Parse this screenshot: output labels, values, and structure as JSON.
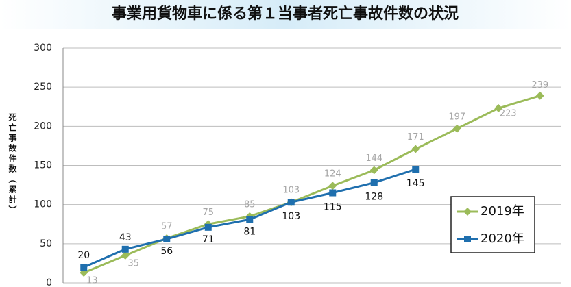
{
  "chart_data": {
    "type": "line",
    "title": "事業用貨物車に係る第１当事者死亡事故件数の状況",
    "y_label": "死亡事故件数（累計）",
    "categories": [
      null,
      null,
      null,
      null,
      null,
      null,
      null,
      null,
      null,
      null,
      null,
      null
    ],
    "series": [
      {
        "name": "2019年",
        "color": "#9bbb59",
        "values": [
          13,
          35,
          57,
          75,
          85,
          103,
          124,
          144,
          171,
          197,
          223,
          239
        ]
      },
      {
        "name": "2020年",
        "color": "#1f6fae",
        "values": [
          20,
          43,
          56,
          71,
          81,
          103,
          115,
          128,
          145,
          null,
          null,
          null
        ]
      }
    ],
    "ylim": [
      0,
      300
    ],
    "yticks": [
      0,
      50,
      100,
      150,
      200,
      250,
      300
    ],
    "grid": true
  }
}
